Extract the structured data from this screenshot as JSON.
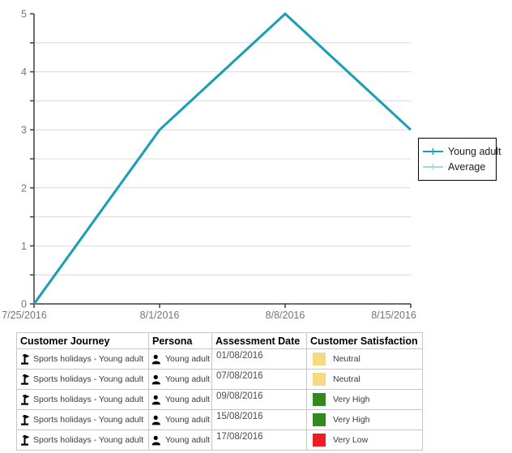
{
  "chart_data": {
    "type": "line",
    "categories": [
      "7/25/2016",
      "8/1/2016",
      "8/8/2016",
      "8/15/2016"
    ],
    "series": [
      {
        "name": "Average",
        "color": "#A9D6DC",
        "values": [
          0,
          3,
          5,
          3
        ]
      },
      {
        "name": "Young adult",
        "color": "#1A9FB4",
        "values": [
          0,
          3,
          5,
          3
        ]
      }
    ],
    "title": "",
    "xlabel": "",
    "ylabel": "",
    "ylim": [
      0,
      5
    ],
    "y_ticks": [
      0,
      1,
      2,
      3,
      4,
      5
    ],
    "y_tick_step": 0.5,
    "y_label_step": 1,
    "grid": true,
    "legend_position": "right"
  },
  "legend": {
    "items": [
      {
        "label": "Young adult",
        "color": "#1A9FB4"
      },
      {
        "label": "Average",
        "color": "#A9D6DC"
      }
    ]
  },
  "table": {
    "headers": [
      "Customer Journey",
      "Persona",
      "Assessment Date",
      "Customer Satisfaction"
    ],
    "rows": [
      {
        "journey": "Sports holidays - Young adult",
        "persona": "Young adult",
        "date": "01/08/2016",
        "satisfaction": {
          "label": "Neutral",
          "color": "#F6DA81"
        }
      },
      {
        "journey": "Sports holidays - Young adult",
        "persona": "Young adult",
        "date": "07/08/2016",
        "satisfaction": {
          "label": "Neutral",
          "color": "#F6DA81"
        }
      },
      {
        "journey": "Sports holidays - Young adult",
        "persona": "Young adult",
        "date": "09/08/2016",
        "satisfaction": {
          "label": "Very High",
          "color": "#328A1E"
        }
      },
      {
        "journey": "Sports holidays - Young adult",
        "persona": "Young adult",
        "date": "15/08/2016",
        "satisfaction": {
          "label": "Very High",
          "color": "#328A1E"
        }
      },
      {
        "journey": "Sports holidays - Young adult",
        "persona": "Young adult",
        "date": "17/08/2016",
        "satisfaction": {
          "label": "Very Low",
          "color": "#ED1C24"
        }
      }
    ]
  },
  "colors": {
    "axis": "#3F3F3F",
    "grid": "#D9D9D9",
    "tick_label": "#757575",
    "table_border": "#C6C6C6"
  }
}
